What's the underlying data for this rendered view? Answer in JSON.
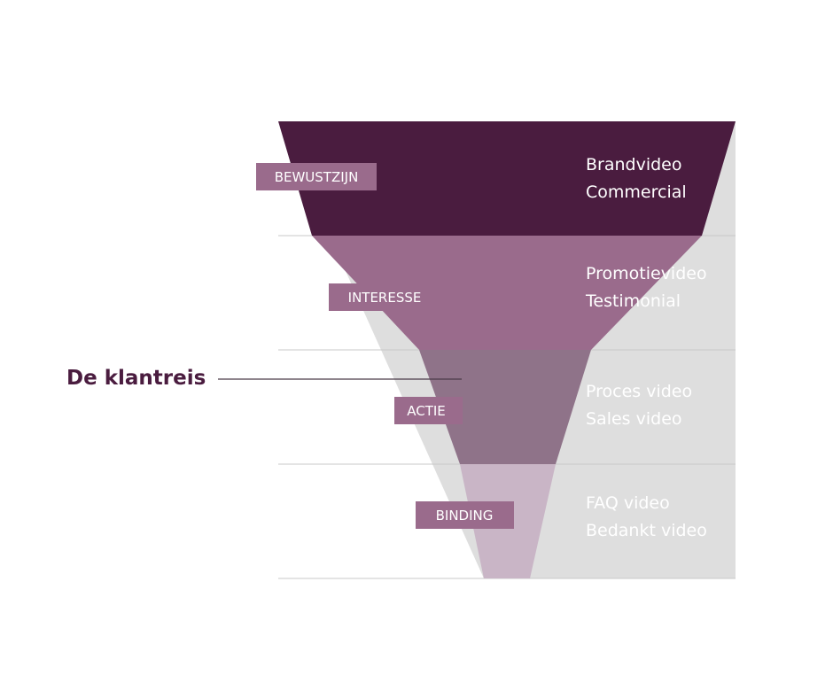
{
  "title": "De klantreis",
  "colors": {
    "title": "#4a1c3f",
    "grey_background": "#dedede",
    "divider": "#c8c8c8",
    "connector": "#4a3a48",
    "stage_1": "#4a1c3f",
    "stage_2": "#9a6b8c",
    "stage_3": "#8f7389",
    "stage_4": "#c9b5c6",
    "label_box": "#9a6b8c"
  },
  "stages": [
    {
      "label": "BEWUSTZIJN",
      "videos": [
        "Brandvideo",
        "Commercial"
      ]
    },
    {
      "label": "INTERESSE",
      "videos": [
        "Promotievideo",
        "Testimonial"
      ]
    },
    {
      "label": "ACTIE",
      "videos": [
        "Proces video",
        "Sales video"
      ]
    },
    {
      "label": "BINDING",
      "videos": [
        "FAQ video",
        "Bedankt video"
      ]
    }
  ]
}
